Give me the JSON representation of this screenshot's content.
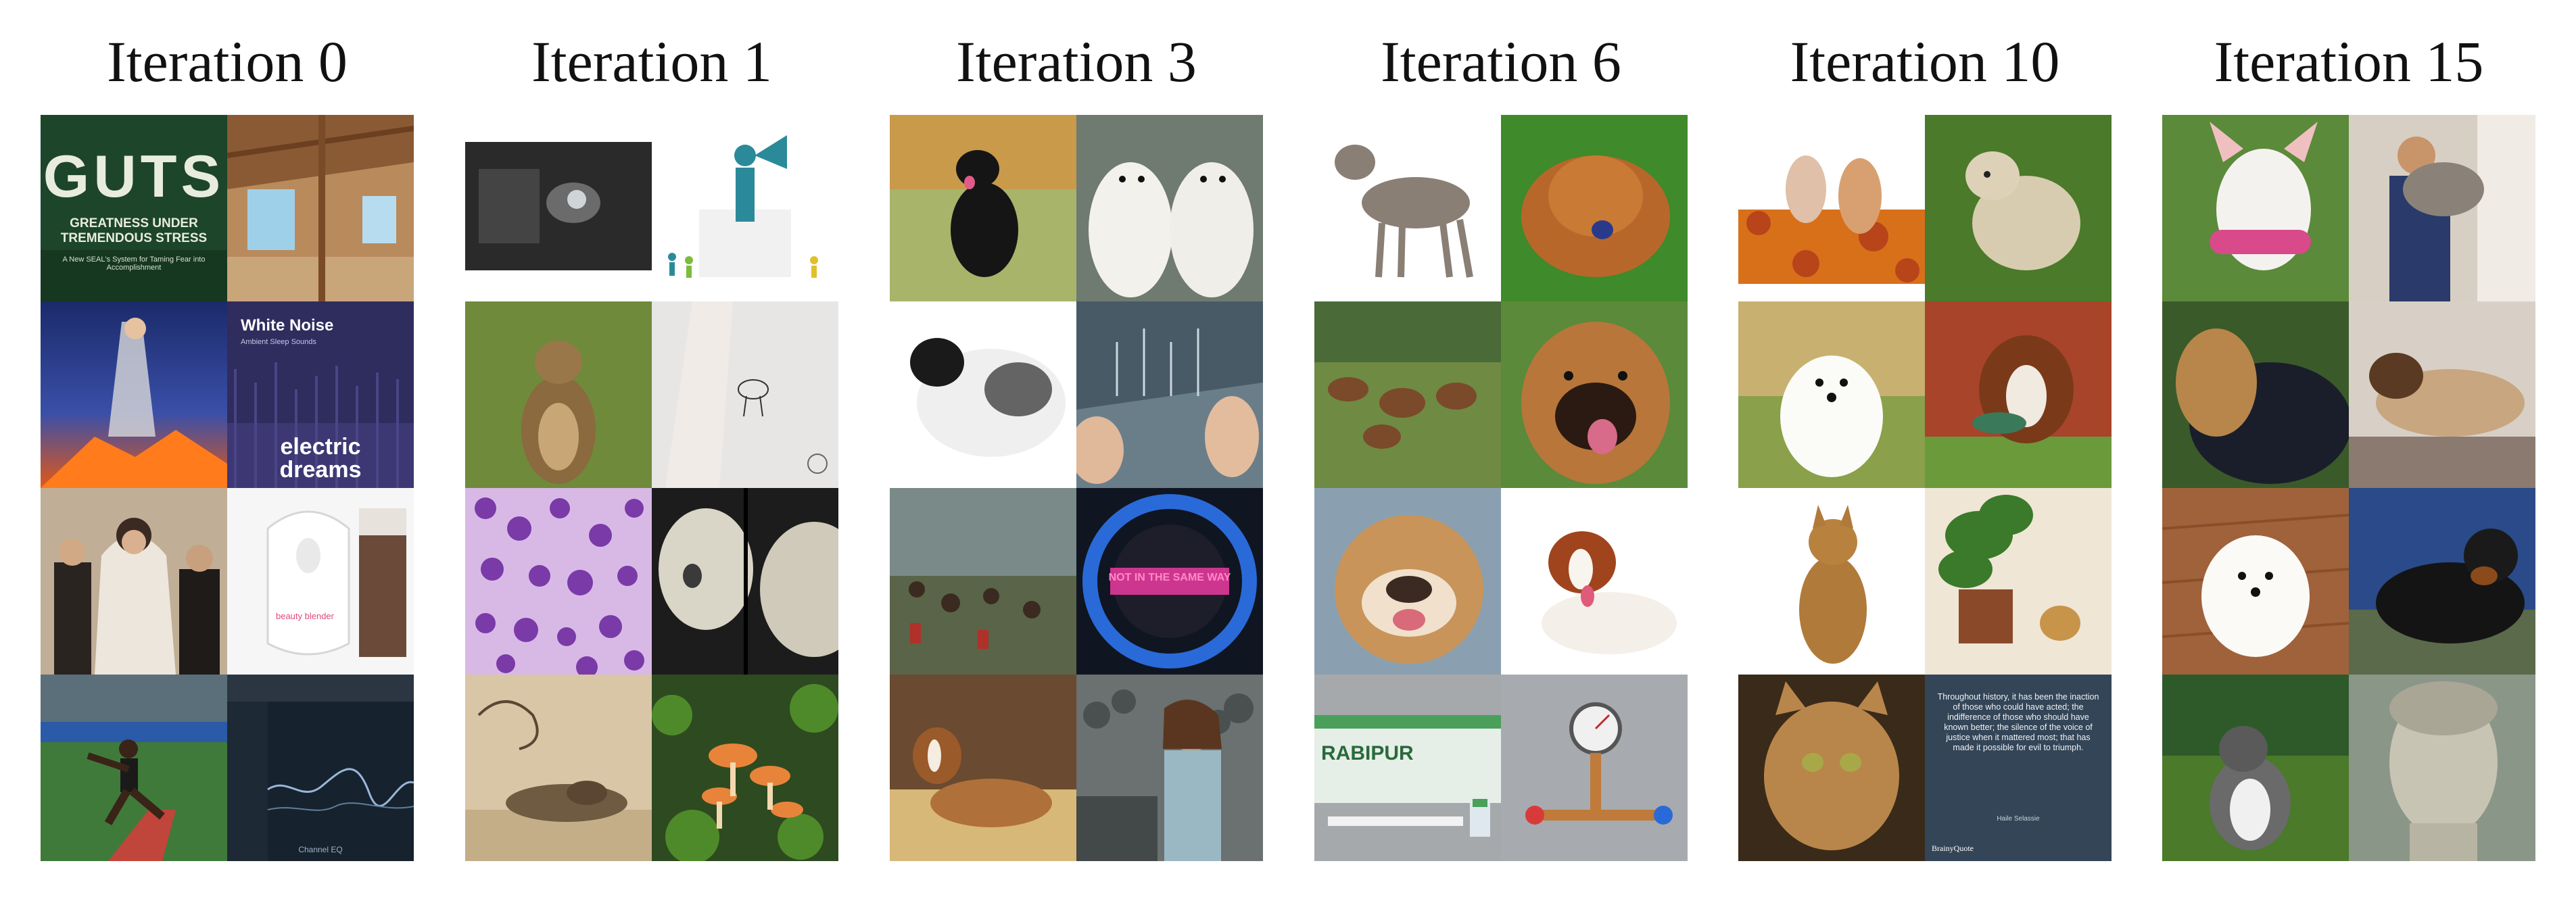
{
  "iterations": [
    {
      "label": "Iteration 0"
    },
    {
      "label": "Iteration 1"
    },
    {
      "label": "Iteration 3"
    },
    {
      "label": "Iteration 6"
    },
    {
      "label": "Iteration 10"
    },
    {
      "label": "Iteration 15"
    }
  ],
  "image_text": {
    "guts_title": "GUTS",
    "guts_subtitle_1": "GREATNESS UNDER",
    "guts_subtitle_2": "TREMENDOUS STRESS",
    "guts_tagline": "A New SEAL's System for Taming Fear into Accomplishment",
    "white_noise_title": "White Noise",
    "white_noise_sub": "Ambient Sleep Sounds",
    "electric_dreams_1": "electric",
    "electric_dreams_2": "dreams",
    "beauty_blender": "beauty blender",
    "channel_eq": "Channel EQ",
    "not_in_same_way": "NOT IN THE SAME WAY",
    "rabipur": "RABIPUR",
    "quote_text": "Throughout history, it has been the inaction of those who could have acted; the indifference of those who should have known better; the silence of the voice of justice when it mattered most; that has made it possible for evil to triumph.",
    "quote_author": "Haile Selassie",
    "quote_brand": "BrainyQuote"
  },
  "colors": {
    "title_text": "#111111",
    "background": "#ffffff"
  }
}
